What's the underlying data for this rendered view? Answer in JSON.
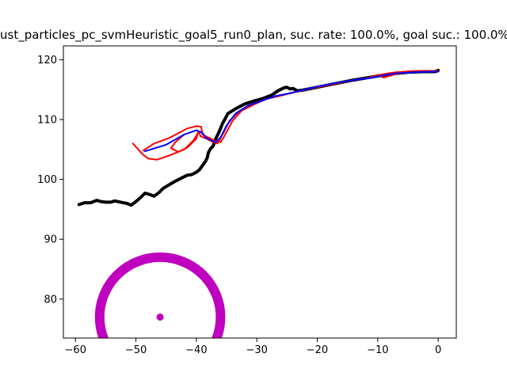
{
  "chart_data": {
    "type": "line",
    "title": "ust_particles_pc_svmHeuristic_goal5_run0_plan, suc. rate: 100.0%, goal suc.: 100.0%",
    "xlabel": "",
    "ylabel": "",
    "xlim": [
      -62,
      3
    ],
    "ylim": [
      73.5,
      122.3
    ],
    "xticks": [
      -60,
      -50,
      -40,
      -30,
      -20,
      -10,
      0
    ],
    "yticks": [
      80,
      90,
      100,
      110,
      120
    ],
    "grid": false,
    "series": [
      {
        "role": "actual-path",
        "color": "#000000",
        "style": "thick-line",
        "points": [
          [
            -59.4,
            95.8
          ],
          [
            -58.5,
            96.1
          ],
          [
            -57.5,
            96.1
          ],
          [
            -56.5,
            96.5
          ],
          [
            -55.8,
            96.3
          ],
          [
            -55.0,
            96.2
          ],
          [
            -54.2,
            96.2
          ],
          [
            -53.5,
            96.4
          ],
          [
            -52.5,
            96.2
          ],
          [
            -51.5,
            96.0
          ],
          [
            -50.8,
            95.7
          ],
          [
            -50.0,
            96.3
          ],
          [
            -49.2,
            97.0
          ],
          [
            -48.5,
            97.7
          ],
          [
            -47.8,
            97.5
          ],
          [
            -47.0,
            97.2
          ],
          [
            -46.2,
            97.8
          ],
          [
            -45.5,
            98.5
          ],
          [
            -44.5,
            99.1
          ],
          [
            -43.5,
            99.7
          ],
          [
            -42.5,
            100.2
          ],
          [
            -41.5,
            100.7
          ],
          [
            -40.8,
            100.8
          ],
          [
            -40.0,
            101.2
          ],
          [
            -39.5,
            101.6
          ],
          [
            -39.0,
            102.3
          ],
          [
            -38.5,
            103.0
          ],
          [
            -38.2,
            103.6
          ],
          [
            -38.0,
            104.5
          ],
          [
            -37.6,
            105.2
          ],
          [
            -37.2,
            105.6
          ],
          [
            -37.0,
            106.3
          ],
          [
            -36.7,
            107.0
          ],
          [
            -36.3,
            107.8
          ],
          [
            -36.0,
            108.5
          ],
          [
            -35.7,
            109.3
          ],
          [
            -35.2,
            110.2
          ],
          [
            -34.8,
            111.0
          ],
          [
            -33.5,
            111.8
          ],
          [
            -32.0,
            112.6
          ],
          [
            -30.5,
            113.1
          ],
          [
            -29.0,
            113.5
          ],
          [
            -27.5,
            114.1
          ],
          [
            -26.5,
            114.8
          ],
          [
            -25.5,
            115.3
          ],
          [
            -25.0,
            115.4
          ],
          [
            -24.5,
            115.1
          ],
          [
            -24.0,
            115.2
          ],
          [
            -23.3,
            114.8
          ],
          [
            -22.5,
            114.9
          ],
          [
            -20.0,
            115.4
          ],
          [
            -17.0,
            116.0
          ],
          [
            -14.0,
            116.6
          ],
          [
            -11.0,
            117.1
          ],
          [
            -8.0,
            117.6
          ],
          [
            -5.0,
            117.9
          ],
          [
            -2.5,
            118.0
          ],
          [
            -0.5,
            118.0
          ],
          [
            0.0,
            118.2
          ]
        ]
      },
      {
        "role": "planned-path",
        "color": "#0000ff",
        "style": "line",
        "points": [
          [
            -48.5,
            104.7
          ],
          [
            -45.0,
            105.8
          ],
          [
            -42.0,
            107.5
          ],
          [
            -40.0,
            108.2
          ],
          [
            -39.0,
            107.8
          ],
          [
            -38.5,
            107.0
          ],
          [
            -37.5,
            106.5
          ],
          [
            -36.8,
            106.2
          ],
          [
            -36.0,
            107.0
          ],
          [
            -35.0,
            109.0
          ],
          [
            -33.5,
            111.0
          ],
          [
            -31.5,
            112.3
          ],
          [
            -29.0,
            113.2
          ],
          [
            -27.0,
            113.9
          ],
          [
            -25.0,
            114.3
          ],
          [
            -22.5,
            114.9
          ],
          [
            -20.0,
            115.5
          ],
          [
            -17.0,
            116.1
          ],
          [
            -14.0,
            116.6
          ],
          [
            -11.0,
            117.0
          ],
          [
            -9.5,
            117.3
          ],
          [
            -7.0,
            117.7
          ],
          [
            -4.0,
            117.9
          ],
          [
            -1.0,
            118.0
          ],
          [
            0.0,
            118.0
          ]
        ]
      },
      {
        "role": "particle-path",
        "color": "#ff0000",
        "style": "line",
        "points": [
          [
            -50.5,
            106.0
          ],
          [
            -49.0,
            104.3
          ],
          [
            -48.0,
            103.5
          ],
          [
            -46.5,
            103.3
          ],
          [
            -44.5,
            104.0
          ],
          [
            -42.0,
            105.0
          ],
          [
            -40.5,
            106.5
          ],
          [
            -39.6,
            108.0
          ],
          [
            -39.3,
            107.2
          ],
          [
            -38.3,
            106.8
          ],
          [
            -37.2,
            106.2
          ],
          [
            -36.5,
            106.0
          ],
          [
            -35.5,
            107.8
          ],
          [
            -34.5,
            109.8
          ],
          [
            -33.0,
            111.3
          ],
          [
            -31.0,
            112.5
          ],
          [
            -28.5,
            113.4
          ],
          [
            -26.0,
            114.0
          ],
          [
            -23.5,
            114.6
          ],
          [
            -21.0,
            115.2
          ],
          [
            -18.0,
            115.8
          ],
          [
            -15.0,
            116.4
          ],
          [
            -12.0,
            116.9
          ],
          [
            -9.5,
            117.5
          ],
          [
            -7.0,
            117.9
          ],
          [
            -4.0,
            118.1
          ],
          [
            -1.0,
            118.1
          ],
          [
            0.0,
            118.0
          ]
        ]
      },
      {
        "role": "particle-path",
        "color": "#ff0000",
        "style": "line",
        "points": [
          [
            -48.8,
            104.8
          ],
          [
            -47.0,
            106.0
          ],
          [
            -44.5,
            106.9
          ],
          [
            -41.5,
            108.5
          ],
          [
            -40.0,
            108.9
          ],
          [
            -39.2,
            108.8
          ],
          [
            -39.0,
            107.5
          ],
          [
            -38.0,
            107.0
          ],
          [
            -37.0,
            106.5
          ],
          [
            -36.0,
            106.2
          ],
          [
            -35.5,
            107.0
          ],
          [
            -34.0,
            109.8
          ],
          [
            -32.5,
            111.5
          ],
          [
            -30.5,
            112.5
          ],
          [
            -28.0,
            113.6
          ]
        ]
      },
      {
        "role": "particle-path",
        "color": "#ff0000",
        "style": "line",
        "points": [
          [
            -42.0,
            107.5
          ],
          [
            -43.5,
            106.2
          ],
          [
            -44.2,
            105.2
          ],
          [
            -43.0,
            104.6
          ],
          [
            -41.5,
            105.3
          ],
          [
            -40.0,
            106.8
          ],
          [
            -39.8,
            107.6
          ]
        ]
      },
      {
        "role": "particle-path",
        "color": "#ff0000",
        "style": "line",
        "points": [
          [
            -10.0,
            117.5
          ],
          [
            -9.0,
            117.0
          ],
          [
            -7.0,
            117.6
          ],
          [
            -5.0,
            118.0
          ],
          [
            -2.0,
            118.1
          ],
          [
            0.0,
            118.1
          ]
        ]
      }
    ],
    "goal": {
      "center": [
        -46,
        77
      ],
      "radius": 10,
      "color": "#bf00bf"
    }
  }
}
